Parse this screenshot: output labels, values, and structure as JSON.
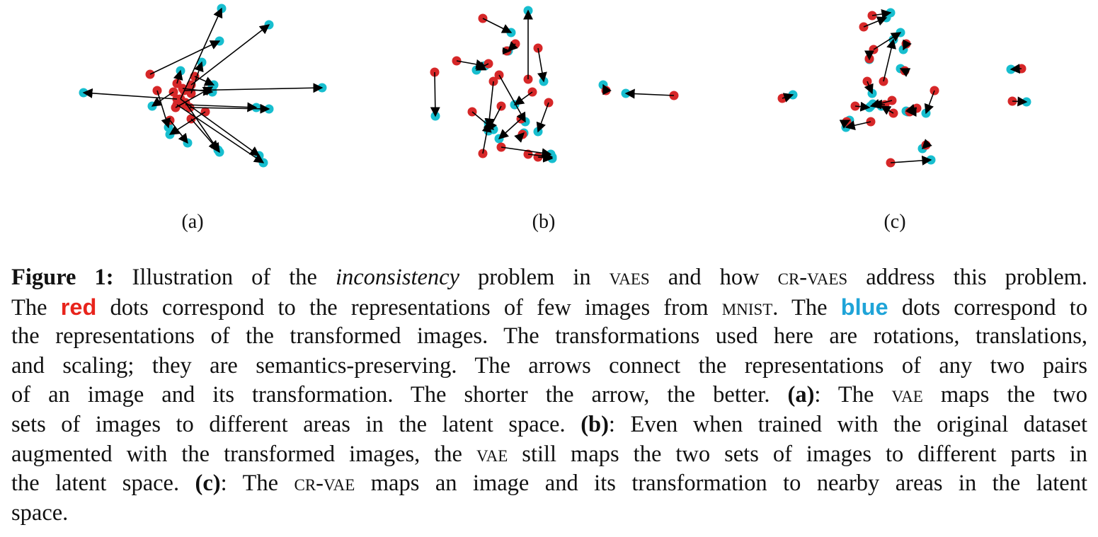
{
  "colors": {
    "red": "#d62728",
    "blue": "#17becf",
    "arrow": "#000000",
    "red_text": "#e8241c",
    "blue_text": "#1fa4d8"
  },
  "panels": [
    {
      "label": "(a)",
      "pairs": [
        [
          255,
          140,
          313,
          12
        ],
        [
          270,
          120,
          380,
          35
        ],
        [
          212,
          105,
          310,
          58
        ],
        [
          260,
          128,
          455,
          124
        ],
        [
          250,
          140,
          118,
          131
        ],
        [
          262,
          148,
          362,
          152
        ],
        [
          268,
          152,
          380,
          154
        ],
        [
          250,
          148,
          372,
          230
        ],
        [
          255,
          140,
          366,
          220
        ],
        [
          262,
          145,
          310,
          215
        ],
        [
          240,
          170,
          265,
          202
        ],
        [
          245,
          130,
          215,
          150
        ],
        [
          290,
          158,
          240,
          190
        ],
        [
          275,
          108,
          302,
          120
        ],
        [
          258,
          125,
          300,
          130
        ],
        [
          270,
          132,
          285,
          88
        ],
        [
          250,
          118,
          255,
          100
        ],
        [
          248,
          152,
          300,
          123
        ],
        [
          222,
          128,
          238,
          180
        ],
        [
          270,
          168,
          308,
          212
        ]
      ]
    },
    {
      "label": "(b)",
      "pairs": [
        [
          682,
          26,
          722,
          46
        ],
        [
          645,
          86,
          685,
          93
        ],
        [
          728,
          62,
          718,
          72
        ],
        [
          746,
          112,
          746,
          15
        ],
        [
          760,
          68,
          768,
          115
        ],
        [
          614,
          102,
          615,
          164
        ],
        [
          705,
          106,
          742,
          172
        ],
        [
          752,
          130,
          727,
          148
        ],
        [
          697,
          115,
          690,
          180
        ],
        [
          708,
          150,
          690,
          185
        ],
        [
          667,
          158,
          697,
          183
        ],
        [
          736,
          168,
          705,
          196
        ],
        [
          775,
          145,
          760,
          186
        ],
        [
          682,
          217,
          690,
          174
        ],
        [
          708,
          208,
          778,
          218
        ],
        [
          746,
          218,
          780,
          222
        ],
        [
          760,
          222,
          780,
          224
        ],
        [
          690,
          90,
          673,
          99
        ],
        [
          716,
          72,
          716,
          72
        ],
        [
          952,
          135,
          884,
          132
        ],
        [
          856,
          128,
          852,
          120
        ],
        [
          738,
          190,
          740,
          188
        ]
      ]
    },
    {
      "label": "(c)",
      "pairs": [
        [
          1232,
          22,
          1258,
          18
        ],
        [
          1220,
          38,
          1252,
          25
        ],
        [
          1234,
          70,
          1272,
          46
        ],
        [
          1248,
          115,
          1262,
          56
        ],
        [
          1278,
          100,
          1272,
          97
        ],
        [
          1228,
          83,
          1228,
          84
        ],
        [
          1225,
          115,
          1232,
          132
        ],
        [
          1260,
          142,
          1230,
          150
        ],
        [
          1230,
          172,
          1195,
          180
        ],
        [
          1208,
          150,
          1228,
          152
        ],
        [
          1262,
          160,
          1245,
          150
        ],
        [
          1320,
          128,
          1308,
          160
        ],
        [
          1295,
          153,
          1280,
          157
        ],
        [
          1285,
          158,
          1282,
          158
        ],
        [
          1258,
          230,
          1315,
          226
        ],
        [
          1308,
          205,
          1303,
          210
        ],
        [
          1443,
          97,
          1428,
          98
        ],
        [
          1430,
          143,
          1450,
          144
        ],
        [
          1105,
          139,
          1120,
          134
        ],
        [
          1250,
          148,
          1233,
          147
        ],
        [
          1196,
          172,
          1200,
          170
        ],
        [
          1280,
          62,
          1276,
          70
        ]
      ]
    }
  ],
  "caption": {
    "l1_label": "Figure 1:",
    "l1_a": "Illustration of the",
    "l1_b": "inconsistency",
    "l1_c": "problem in",
    "l1_d": "vaes",
    "l1_e": "and how",
    "l1_f": "cr-vaes",
    "l1_g": "address this problem.",
    "l2_a": "The",
    "l2_red": "red",
    "l2_b": "dots correspond to the representations of few images from",
    "l2_c": "mnist",
    "l2_d": ". The",
    "l2_blue": "blue",
    "l2_e": "dots correspond to",
    "l3": "the representations of the transformed images. The transformations used here are rotations, translations,",
    "l4": "and scaling; they are semantics-preserving. The arrows connect the representations of any two pairs",
    "l5_a": "of an image and its transformation. The shorter the arrow, the better.",
    "l5_b": "(a)",
    "l5_c": ": The",
    "l5_d": "vae",
    "l5_e": "maps the two",
    "l6_a": "sets of images to different areas in the latent space.",
    "l6_b": "(b)",
    "l6_c": ": Even when trained with the original dataset",
    "l7_a": "augmented with the transformed images, the",
    "l7_b": "vae",
    "l7_c": "still maps the two sets of images to different parts in",
    "l8_a": "the latent space.",
    "l8_b": "(c)",
    "l8_c": ": The",
    "l8_d": "cr-vae",
    "l8_e": "maps an image and its transformation to nearby areas in the latent",
    "l9": "space."
  }
}
